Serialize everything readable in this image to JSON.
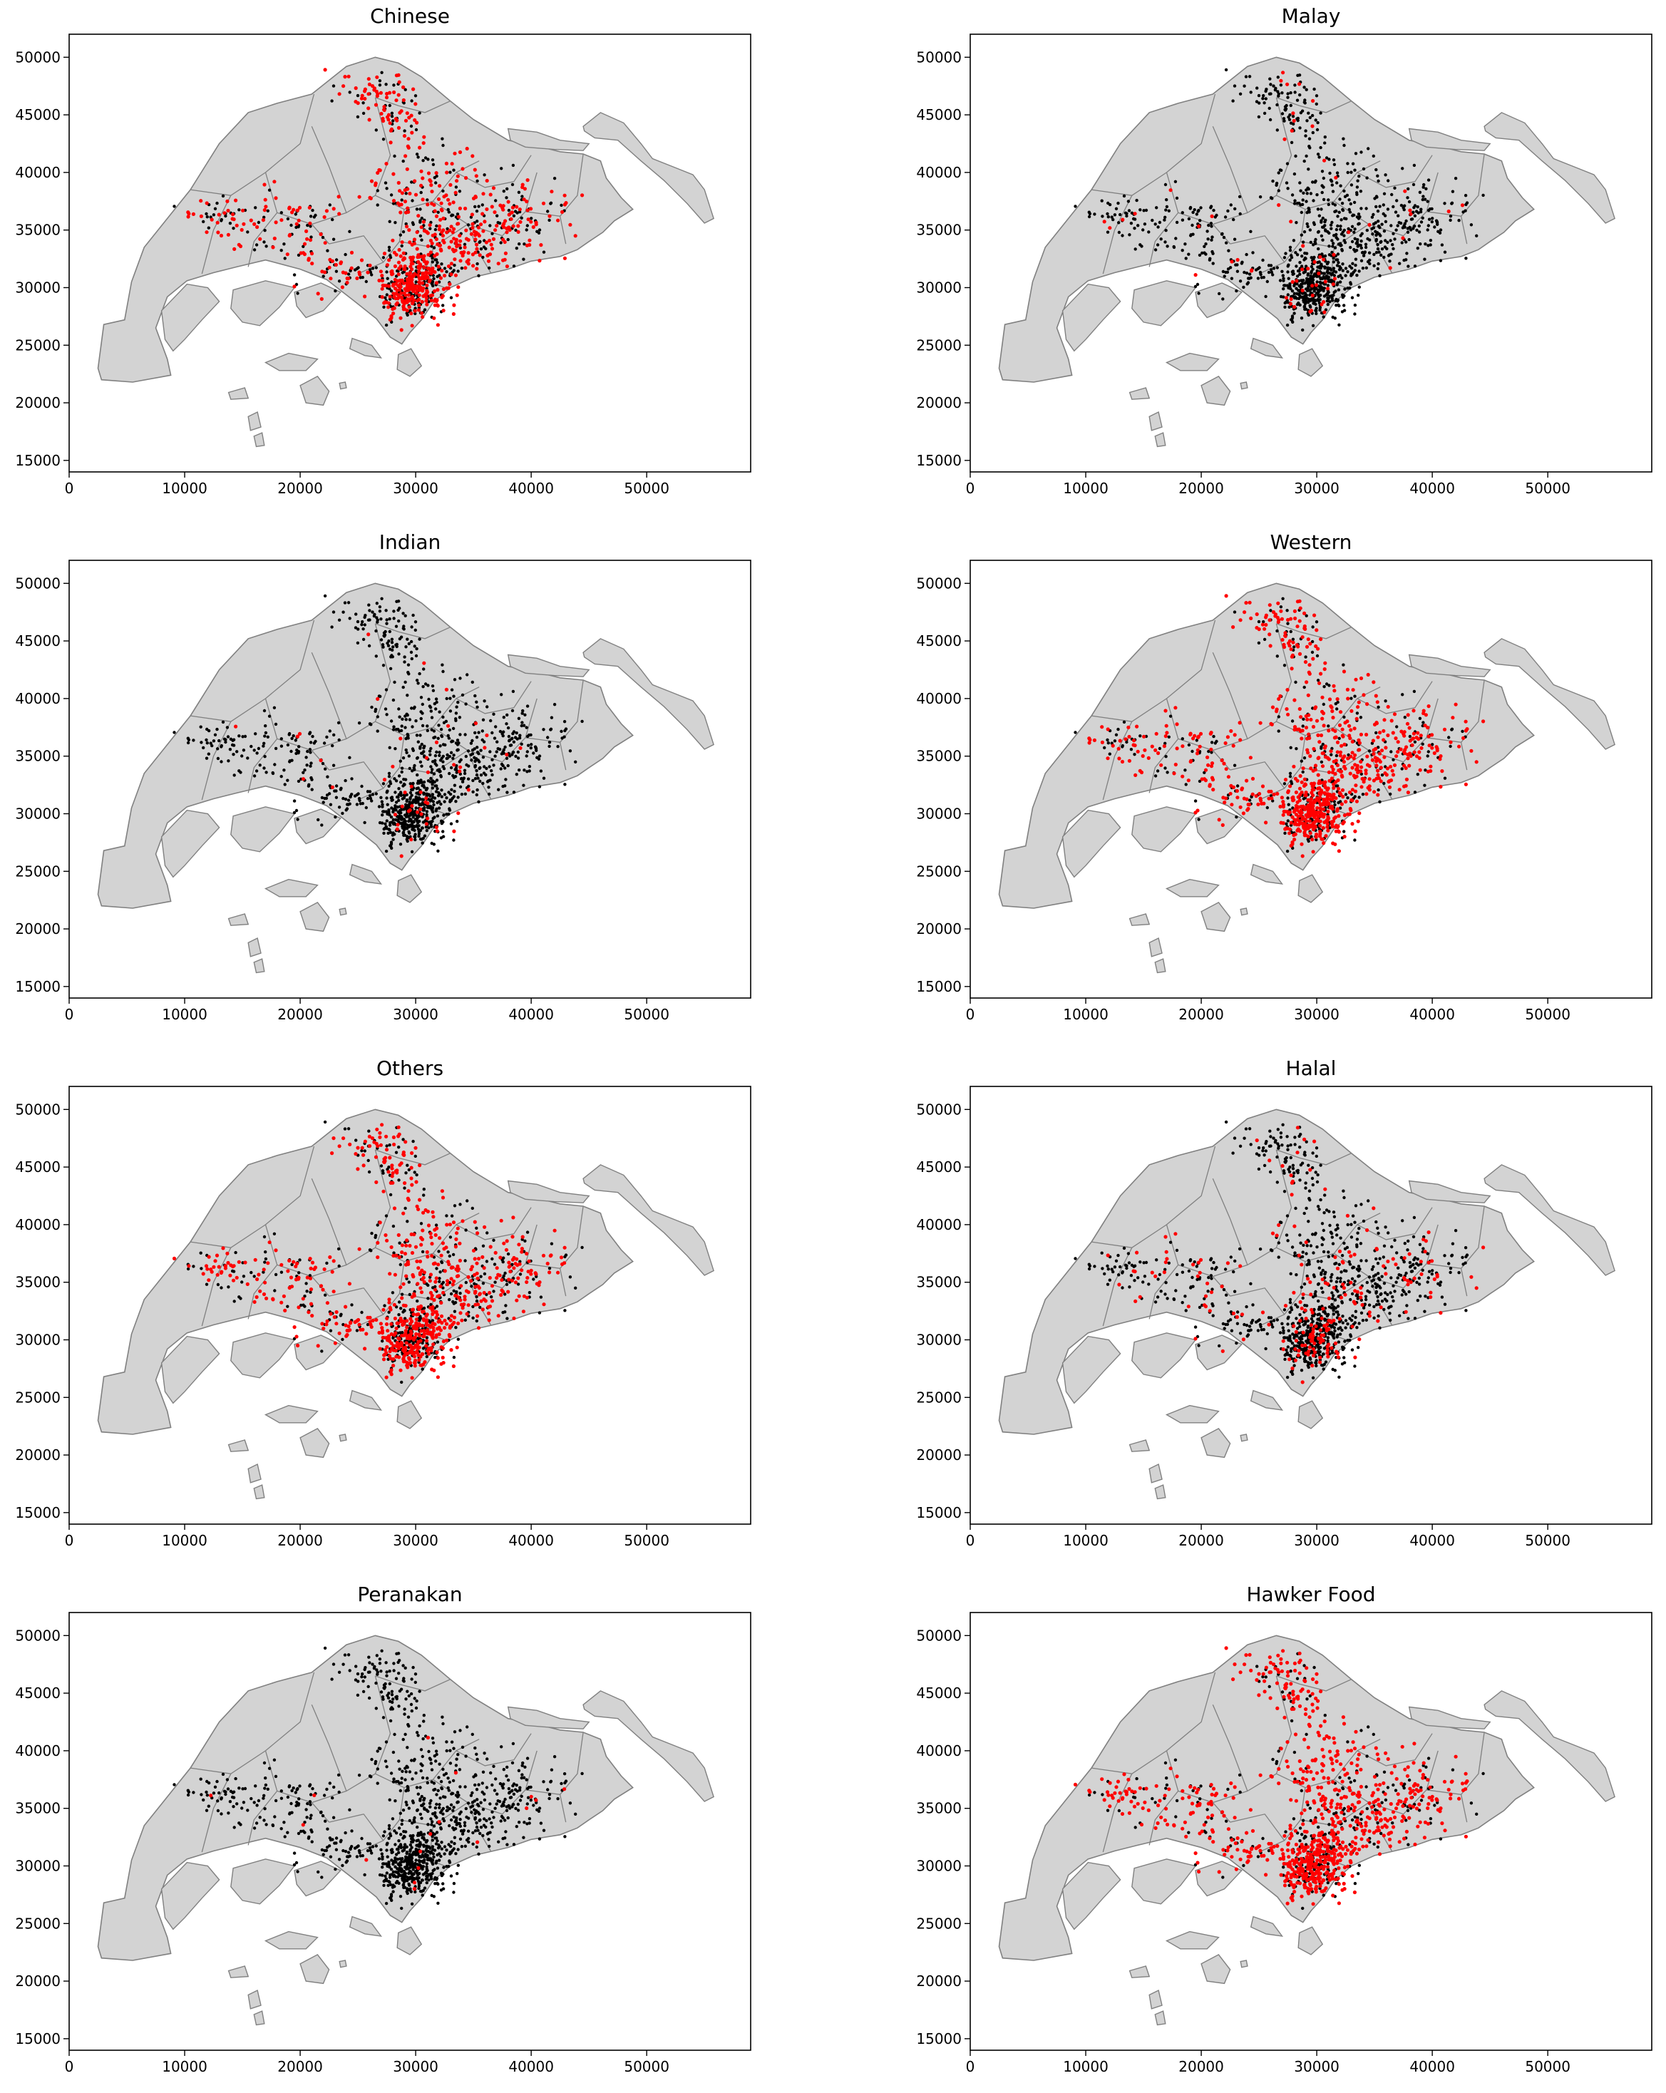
{
  "figure": {
    "panels": [
      {
        "title": "Chinese",
        "red_share": 0.6
      },
      {
        "title": "Malay",
        "red_share": 0.05
      },
      {
        "title": "Indian",
        "red_share": 0.04
      },
      {
        "title": "Western",
        "red_share": 0.7
      },
      {
        "title": "Others",
        "red_share": 0.62
      },
      {
        "title": "Halal",
        "red_share": 0.18
      },
      {
        "title": "Peranakan",
        "red_share": 0.02
      },
      {
        "title": "Hawker Food",
        "red_share": 0.72
      }
    ],
    "colors": {
      "land": "#d3d3d3",
      "boundary": "#808080",
      "highlight": "#ff0000",
      "point": "#000000"
    }
  },
  "chart_data": {
    "type": "scatter",
    "xlim": [
      0,
      59000
    ],
    "ylim": [
      14000,
      52000
    ],
    "x_ticks": [
      0,
      10000,
      20000,
      30000,
      40000,
      50000
    ],
    "y_ticks": [
      15000,
      20000,
      25000,
      30000,
      35000,
      40000,
      45000,
      50000
    ],
    "grid": false,
    "legend": "none"
  }
}
